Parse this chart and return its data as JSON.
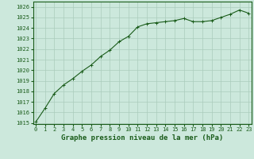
{
  "x": [
    0,
    1,
    2,
    3,
    4,
    5,
    6,
    7,
    8,
    9,
    10,
    11,
    12,
    13,
    14,
    15,
    16,
    17,
    18,
    19,
    20,
    21,
    22,
    23
  ],
  "y": [
    1015.1,
    1016.4,
    1017.8,
    1018.6,
    1019.2,
    1019.9,
    1020.5,
    1021.3,
    1021.9,
    1022.7,
    1023.2,
    1024.1,
    1024.4,
    1024.5,
    1024.6,
    1024.7,
    1024.9,
    1024.6,
    1024.6,
    1024.7,
    1025.0,
    1025.3,
    1025.7,
    1025.4
  ],
  "line_color": "#1a5c1a",
  "marker_color": "#1a5c1a",
  "bg_color": "#cce8dc",
  "grid_color": "#aaccbb",
  "axis_color": "#1a5c1a",
  "title": "Graphe pression niveau de la mer (hPa)",
  "ylabel_ticks": [
    1015,
    1016,
    1017,
    1018,
    1019,
    1020,
    1021,
    1022,
    1023,
    1024,
    1025,
    1026
  ],
  "xlabel_ticks": [
    0,
    1,
    2,
    3,
    4,
    5,
    6,
    7,
    8,
    9,
    10,
    11,
    12,
    13,
    14,
    15,
    16,
    17,
    18,
    19,
    20,
    21,
    22,
    23
  ],
  "ylim": [
    1014.9,
    1026.5
  ],
  "xlim": [
    -0.3,
    23.3
  ],
  "title_fontsize": 6.5,
  "tick_fontsize": 5.0,
  "line_width": 0.8,
  "marker_size": 2.8
}
